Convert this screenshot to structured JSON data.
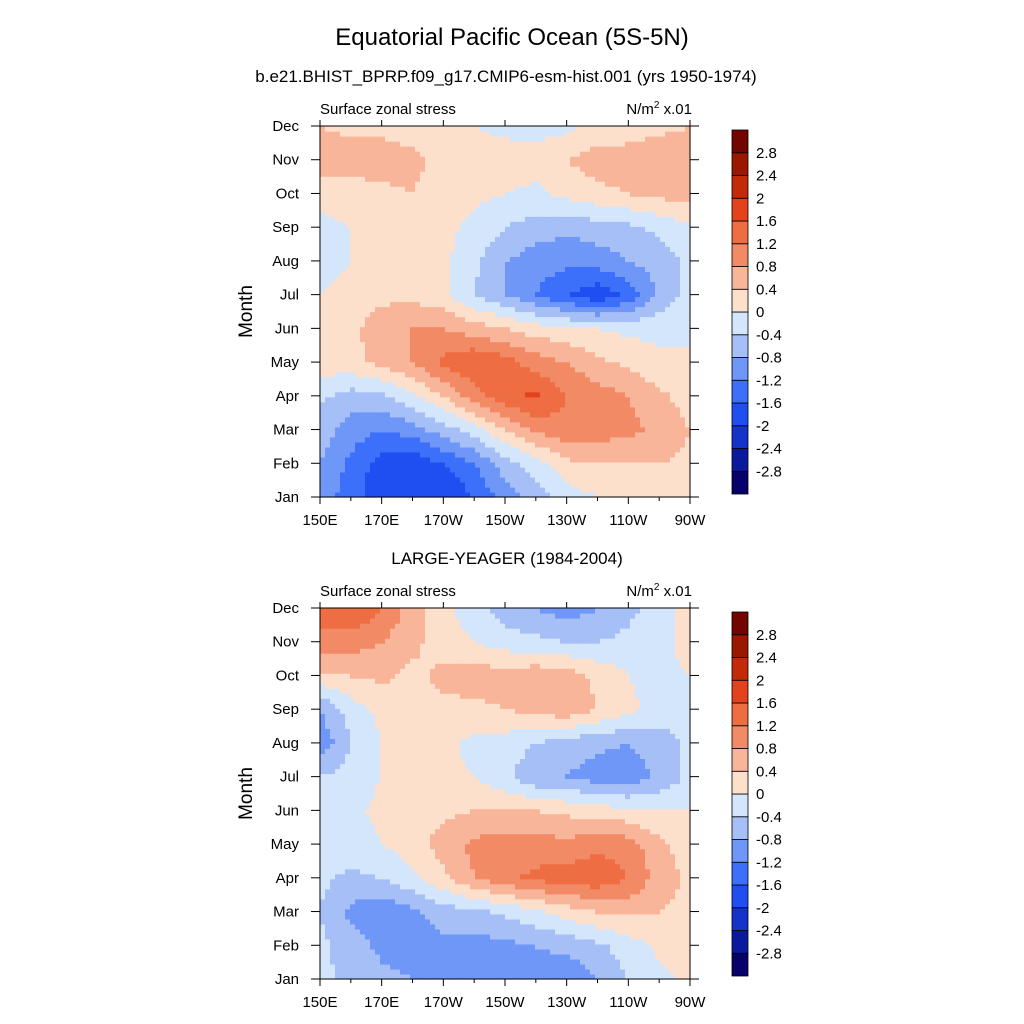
{
  "figure": {
    "title": "Equatorial Pacific Ocean (5S-5N)",
    "subtitle": "b.e21.BHIST_BPRP.f09_g17.CMIP6-esm-hist.001 (yrs 1950-1974)"
  },
  "chart_data": [
    {
      "type": "heatmap",
      "panel_title": "",
      "left_label": "Surface zonal stress",
      "units_label": "N/m",
      "units_sup": "2",
      "units_suffix": " x.01",
      "ylabel": "Month",
      "x_ticks": [
        "150E",
        "170E",
        "170W",
        "150W",
        "130W",
        "110W",
        "90W"
      ],
      "y_ticks": [
        "Jan",
        "Feb",
        "Mar",
        "Apr",
        "May",
        "Jun",
        "Jul",
        "Aug",
        "Sep",
        "Oct",
        "Nov",
        "Dec"
      ],
      "x": [
        "150E",
        "160E",
        "170E",
        "180",
        "170W",
        "160W",
        "150W",
        "140W",
        "130W",
        "120W",
        "110W",
        "100W",
        "90W"
      ],
      "values": [
        [
          -1.0,
          -1.4,
          -1.9,
          -2.0,
          -2.0,
          -1.6,
          -1.0,
          -0.6,
          -0.2,
          0.0,
          0.1,
          0.2,
          0.2
        ],
        [
          -0.8,
          -1.3,
          -1.8,
          -1.9,
          -1.6,
          -1.2,
          -0.6,
          -0.2,
          0.3,
          0.4,
          0.4,
          0.4,
          0.3
        ],
        [
          -0.6,
          -1.0,
          -1.2,
          -1.0,
          -0.6,
          -0.2,
          0.4,
          0.9,
          1.1,
          1.0,
          0.9,
          0.7,
          0.4
        ],
        [
          -0.3,
          -0.6,
          -0.5,
          -0.1,
          0.4,
          1.0,
          1.5,
          1.7,
          1.2,
          1.0,
          0.8,
          0.5,
          0.2
        ],
        [
          0.2,
          0.3,
          0.5,
          0.8,
          1.3,
          1.6,
          1.4,
          1.0,
          0.8,
          0.5,
          0.3,
          0.1,
          0.0
        ],
        [
          0.2,
          0.3,
          0.6,
          0.8,
          0.8,
          0.6,
          0.4,
          0.2,
          0.1,
          0.0,
          -0.1,
          -0.1,
          0.0
        ],
        [
          0.0,
          0.2,
          0.3,
          0.3,
          0.1,
          -0.4,
          -0.8,
          -1.2,
          -1.6,
          -1.9,
          -1.5,
          -0.7,
          -0.2
        ],
        [
          -0.2,
          0.0,
          0.1,
          0.2,
          0.1,
          -0.3,
          -0.8,
          -1.0,
          -1.1,
          -1.0,
          -0.8,
          -0.6,
          -0.3
        ],
        [
          -0.1,
          0.0,
          0.1,
          0.2,
          0.1,
          -0.1,
          -0.4,
          -0.6,
          -0.7,
          -0.6,
          -0.5,
          -0.3,
          -0.1
        ],
        [
          0.1,
          0.2,
          0.3,
          0.4,
          0.2,
          0.1,
          0.0,
          -0.1,
          0.1,
          0.3,
          0.4,
          0.5,
          0.6
        ],
        [
          0.7,
          0.6,
          0.6,
          0.5,
          0.3,
          0.2,
          0.2,
          0.2,
          0.4,
          0.6,
          0.6,
          0.7,
          0.7
        ],
        [
          0.4,
          0.3,
          0.3,
          0.2,
          0.1,
          0.0,
          -0.1,
          -0.2,
          -0.1,
          0.1,
          0.2,
          0.3,
          0.4
        ]
      ],
      "colorbar_levels": [
        -2.8,
        -2.4,
        -2,
        -1.6,
        -1.2,
        -0.8,
        -0.4,
        0,
        0.4,
        0.8,
        1.2,
        1.6,
        2,
        2.4,
        2.8
      ],
      "colorbar_labels": [
        "-2.8",
        "-2.4",
        "-2",
        "-1.6",
        "-1.2",
        "-0.8",
        "-0.4",
        "0",
        "0.4",
        "0.8",
        "1.2",
        "1.6",
        "2",
        "2.4",
        "2.8"
      ],
      "colors": [
        "#08006b",
        "#0b1a9c",
        "#1433c8",
        "#1f4ff0",
        "#3d70fa",
        "#6e97f7",
        "#a6c0f7",
        "#d4e6fb",
        "#fde0cc",
        "#f9b599",
        "#f38a66",
        "#ef6d42",
        "#e2421c",
        "#c22a0a",
        "#9a1700",
        "#730500"
      ]
    },
    {
      "type": "heatmap",
      "panel_title": "LARGE-YEAGER (1984-2004)",
      "left_label": "Surface zonal stress",
      "units_label": "N/m",
      "units_sup": "2",
      "units_suffix": " x.01",
      "ylabel": "Month",
      "x_ticks": [
        "150E",
        "170E",
        "170W",
        "150W",
        "130W",
        "110W",
        "90W"
      ],
      "y_ticks": [
        "Jan",
        "Feb",
        "Mar",
        "Apr",
        "May",
        "Jun",
        "Jul",
        "Aug",
        "Sep",
        "Oct",
        "Nov",
        "Dec"
      ],
      "x": [
        "150E",
        "160E",
        "170E",
        "180",
        "170W",
        "160W",
        "150W",
        "140W",
        "130W",
        "120W",
        "110W",
        "100W",
        "90W"
      ],
      "values": [
        [
          -0.3,
          -0.5,
          -0.7,
          -0.8,
          -1.0,
          -1.2,
          -1.0,
          -0.9,
          -1.1,
          -0.8,
          -0.4,
          -0.1,
          0.1
        ],
        [
          -0.3,
          -0.6,
          -0.9,
          -1.0,
          -0.9,
          -1.0,
          -0.9,
          -0.8,
          -0.7,
          -0.5,
          -0.2,
          0.1,
          0.2
        ],
        [
          -0.4,
          -0.9,
          -1.1,
          -0.9,
          -0.6,
          -0.5,
          -0.3,
          -0.1,
          0.2,
          0.4,
          0.5,
          0.4,
          0.3
        ],
        [
          -0.3,
          -0.5,
          -0.4,
          -0.1,
          0.3,
          0.8,
          1.1,
          1.3,
          1.4,
          1.5,
          1.2,
          0.6,
          0.3
        ],
        [
          -0.2,
          -0.2,
          0.0,
          0.2,
          0.6,
          0.9,
          1.0,
          1.0,
          0.9,
          1.1,
          1.0,
          0.5,
          0.2
        ],
        [
          -0.2,
          -0.1,
          0.1,
          0.2,
          0.3,
          0.4,
          0.4,
          0.4,
          0.3,
          0.2,
          0.1,
          0.0,
          0.0
        ],
        [
          -0.4,
          -0.2,
          0.0,
          0.1,
          0.1,
          0.0,
          -0.3,
          -0.7,
          -0.8,
          -1.0,
          -1.1,
          -0.7,
          -0.3
        ],
        [
          -1.1,
          -0.4,
          0.0,
          0.1,
          0.1,
          -0.1,
          -0.2,
          -0.4,
          -0.6,
          -0.7,
          -0.8,
          -0.6,
          -0.3
        ],
        [
          -0.8,
          -0.2,
          0.1,
          0.2,
          0.3,
          0.3,
          0.4,
          0.5,
          0.7,
          0.4,
          0.1,
          -0.2,
          -0.2
        ],
        [
          0.3,
          0.4,
          0.5,
          0.3,
          0.5,
          0.6,
          0.6,
          0.7,
          0.6,
          0.3,
          0.0,
          -0.1,
          0.0
        ],
        [
          1.1,
          1.0,
          0.8,
          0.5,
          0.2,
          0.0,
          -0.2,
          -0.3,
          -0.4,
          -0.4,
          -0.3,
          -0.2,
          0.2
        ],
        [
          1.3,
          1.6,
          1.2,
          0.6,
          0.1,
          -0.2,
          -0.6,
          -0.8,
          -1.0,
          -0.8,
          -0.5,
          -0.2,
          0.2
        ]
      ],
      "colorbar_levels": [
        -2.8,
        -2.4,
        -2,
        -1.6,
        -1.2,
        -0.8,
        -0.4,
        0,
        0.4,
        0.8,
        1.2,
        1.6,
        2,
        2.4,
        2.8
      ],
      "colorbar_labels": [
        "-2.8",
        "-2.4",
        "-2",
        "-1.6",
        "-1.2",
        "-0.8",
        "-0.4",
        "0",
        "0.4",
        "0.8",
        "1.2",
        "1.6",
        "2",
        "2.4",
        "2.8"
      ],
      "colors": [
        "#08006b",
        "#0b1a9c",
        "#1433c8",
        "#1f4ff0",
        "#3d70fa",
        "#6e97f7",
        "#a6c0f7",
        "#d4e6fb",
        "#fde0cc",
        "#f9b599",
        "#f38a66",
        "#ef6d42",
        "#e2421c",
        "#c22a0a",
        "#9a1700",
        "#730500"
      ]
    }
  ]
}
